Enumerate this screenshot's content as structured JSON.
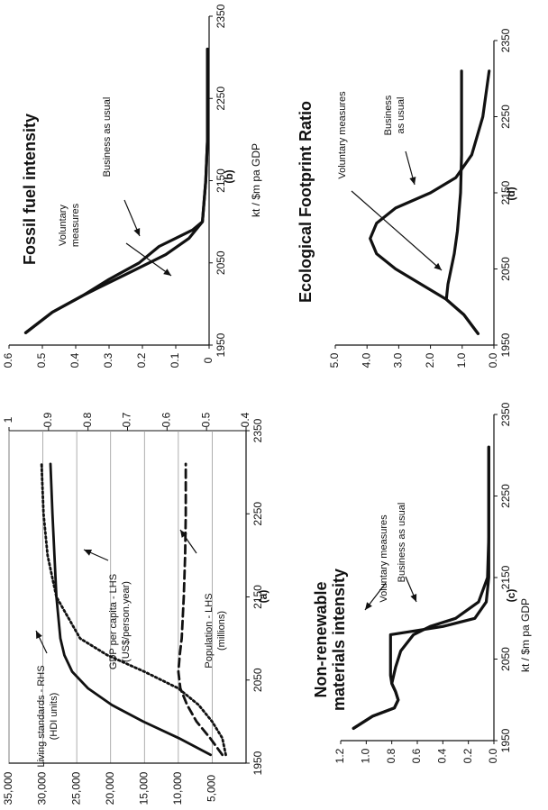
{
  "chart_data": [
    {
      "id": "a",
      "type": "line",
      "caption": "(a)",
      "x": [
        1960,
        1980,
        2000,
        2020,
        2040,
        2060,
        2080,
        2100,
        2150,
        2200,
        2250,
        2310
      ],
      "xticks": [
        "1950",
        "2050",
        "2150",
        "2250",
        "2350"
      ],
      "xlim": [
        1950,
        2350
      ],
      "ylim_left": [
        0,
        35000
      ],
      "yticks_left": [
        "5,000",
        "10,000",
        "15,000",
        "20,000",
        "25,000",
        "30,000",
        "35,000"
      ],
      "ylim_right": [
        0.4,
        1
      ],
      "yticks_right": [
        "0.4",
        "0.5",
        "0.6",
        "0.7",
        "0.8",
        "0.9",
        "1"
      ],
      "grid": true,
      "series": [
        {
          "name": "Living standards - RHS",
          "unit": "(HDI units)",
          "axis": "right",
          "style": "solid",
          "values": [
            0.49,
            0.57,
            0.66,
            0.74,
            0.8,
            0.84,
            0.86,
            0.87,
            0.88,
            0.885,
            0.89,
            0.895
          ]
        },
        {
          "name": "GDP per capita - LHS",
          "unit": "(US$/person.year)",
          "axis": "left",
          "style": "dotted",
          "values": [
            3000,
            3500,
            5000,
            7000,
            10000,
            15000,
            20500,
            24500,
            28000,
            29300,
            29900,
            30200
          ]
        },
        {
          "name": "Population - LHS",
          "unit": "(millions)",
          "axis": "left",
          "style": "dashed",
          "values": [
            3500,
            5300,
            7300,
            8700,
            9700,
            10000,
            9800,
            9500,
            9200,
            9000,
            8900,
            8900
          ]
        }
      ]
    },
    {
      "id": "b",
      "type": "line",
      "title": "Fossil fuel intensity",
      "caption": "(b)",
      "ylabel": "kt / $m pa GDP",
      "xlim": [
        1950,
        2350
      ],
      "xticks": [
        "1950",
        "2050",
        "2150",
        "2250",
        "2350"
      ],
      "ylim": [
        0,
        0.6
      ],
      "yticks": [
        "0",
        "0.1",
        "0.2",
        "0.3",
        "0.4",
        "0.5",
        "0.6"
      ],
      "series": [
        {
          "name": "Business as usual",
          "x": [
            1965,
            1990,
            2010,
            2030,
            2050,
            2070,
            2080,
            2090,
            2100,
            2150,
            2200,
            2250,
            2310
          ],
          "values": [
            0.55,
            0.47,
            0.38,
            0.3,
            0.21,
            0.15,
            0.1,
            0.05,
            0.02,
            0.01,
            0.005,
            0.005,
            0.005
          ]
        },
        {
          "name": "Voluntary measures",
          "x": [
            1965,
            1990,
            2010,
            2020,
            2040,
            2060,
            2080,
            2100,
            2150,
            2200,
            2250,
            2310
          ],
          "values": [
            0.55,
            0.47,
            0.38,
            0.33,
            0.23,
            0.13,
            0.06,
            0.02,
            0.01,
            0.005,
            0.005,
            0.005
          ]
        }
      ]
    },
    {
      "id": "c",
      "type": "line",
      "title": "Non-renewable materials intensity",
      "caption": "(c)",
      "ylabel": "kt / $m pa GDP",
      "xlim": [
        1950,
        2350
      ],
      "xticks": [
        "1950",
        "2050",
        "2150",
        "2250",
        "2350"
      ],
      "ylim": [
        0,
        1.2
      ],
      "yticks": [
        "0.0",
        "0.2",
        "0.4",
        "0.6",
        "0.8",
        "1.0",
        "1.2"
      ],
      "series": [
        {
          "name": "Voluntary measures",
          "x": [
            1965,
            1980,
            1990,
            2000,
            2010,
            2020,
            2030,
            2040,
            2060,
            2080,
            2090,
            2100,
            2120,
            2150,
            2200,
            2250,
            2310
          ],
          "values": [
            1.1,
            0.95,
            0.78,
            0.75,
            0.77,
            0.8,
            0.81,
            0.81,
            0.81,
            0.81,
            0.4,
            0.15,
            0.06,
            0.04,
            0.04,
            0.04,
            0.04
          ]
        },
        {
          "name": "Business as usual",
          "x": [
            1965,
            1980,
            1990,
            2000,
            2010,
            2020,
            2040,
            2060,
            2080,
            2090,
            2100,
            2120,
            2150,
            2200,
            2250,
            2310
          ],
          "values": [
            1.1,
            0.95,
            0.78,
            0.75,
            0.77,
            0.8,
            0.77,
            0.73,
            0.63,
            0.5,
            0.3,
            0.12,
            0.05,
            0.04,
            0.04,
            0.04
          ]
        }
      ]
    },
    {
      "id": "d",
      "type": "line",
      "title": "Ecological Footprint Ratio",
      "caption": "(d)",
      "xlim": [
        1950,
        2350
      ],
      "xticks": [
        "1950",
        "2050",
        "2150",
        "2250",
        "2350"
      ],
      "ylim": [
        0,
        5
      ],
      "yticks": [
        "0.0",
        "1.0",
        "2.0",
        "3.0",
        "4.0",
        "5.0"
      ],
      "series": [
        {
          "name": "Business as usual",
          "x": [
            1965,
            1990,
            2010,
            2030,
            2050,
            2070,
            2090,
            2110,
            2130,
            2150,
            2170,
            2200,
            2250,
            2310
          ],
          "values": [
            0.5,
            0.95,
            1.5,
            2.3,
            3.1,
            3.7,
            3.9,
            3.7,
            3.1,
            2.0,
            1.2,
            0.7,
            0.35,
            0.15
          ]
        },
        {
          "name": "Voluntary measures",
          "x": [
            1965,
            1990,
            2010,
            2030,
            2050,
            2070,
            2100,
            2150,
            2200,
            2250,
            2310
          ],
          "values": [
            0.5,
            0.95,
            1.5,
            1.45,
            1.35,
            1.25,
            1.15,
            1.05,
            1.02,
            1.02,
            1.02
          ]
        }
      ]
    }
  ],
  "colors": {
    "ink": "#111111",
    "grid": "#9a9a9a",
    "background": "#ffffff"
  }
}
